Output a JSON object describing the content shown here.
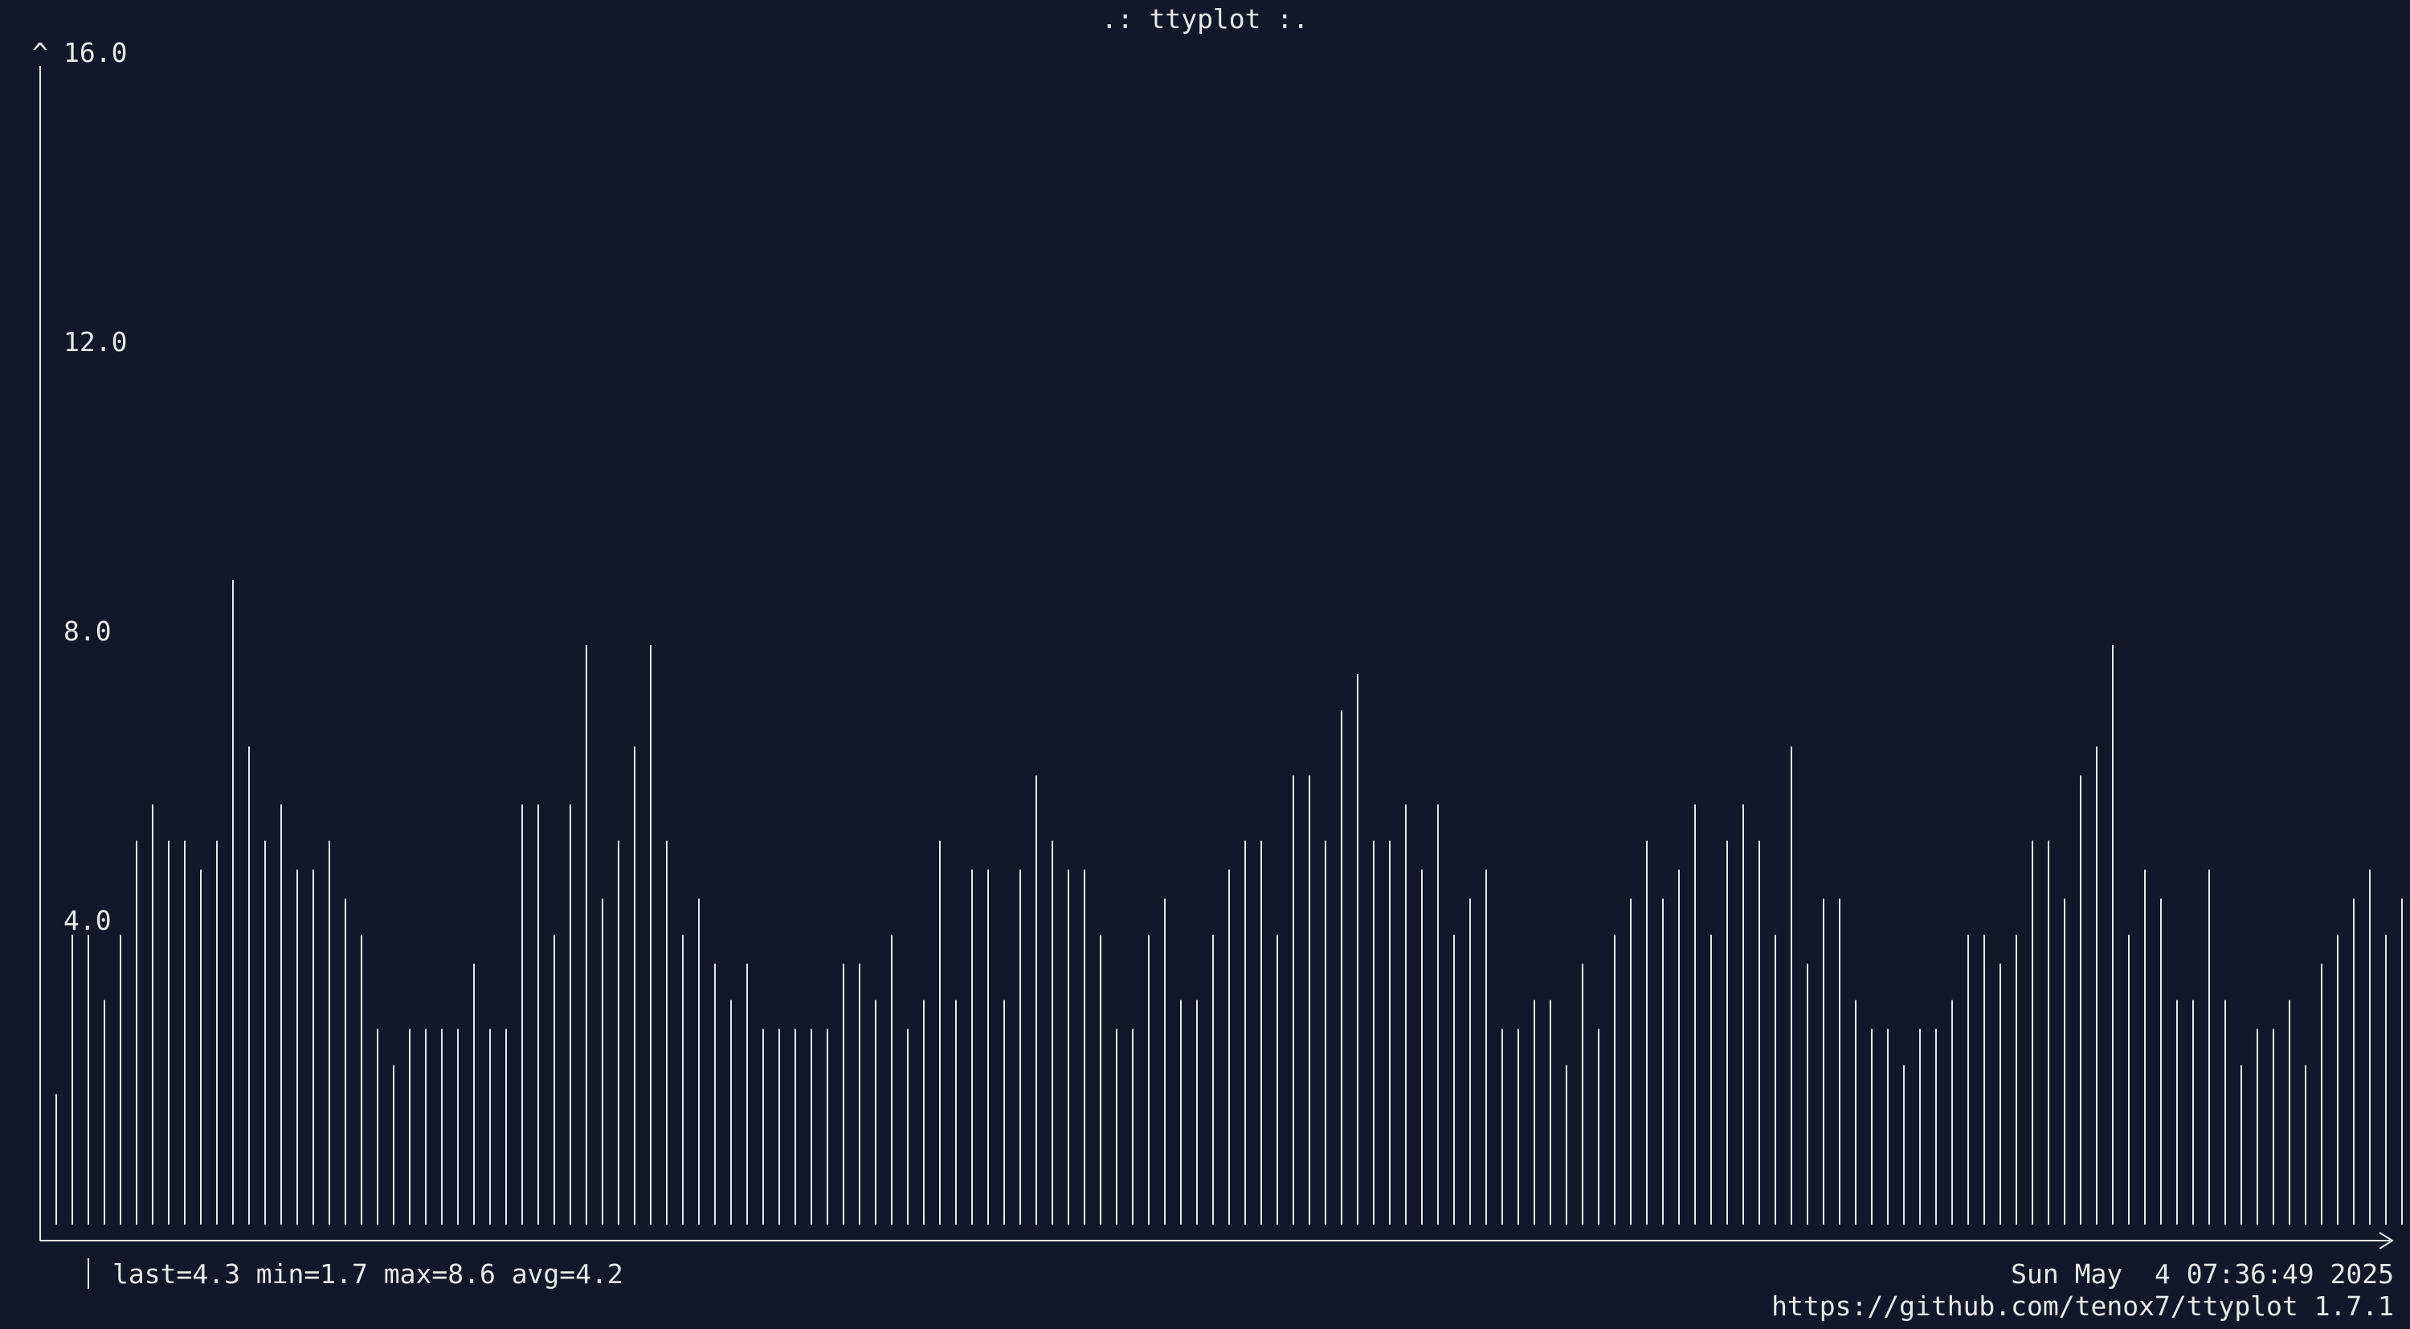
{
  "header": {
    "title": ".: ttyplot :."
  },
  "axis": {
    "y_caret": "^"
  },
  "footer": {
    "stats": "last=4.3 min=1.7 max=8.6 avg=4.2",
    "timestamp": "Sun May  4 07:36:49 2025",
    "url": "https://github.com/tenox7/ttyplot 1.7.1"
  },
  "colors": {
    "background": "#12172a",
    "foreground": "#e8e8e8"
  },
  "chart_data": {
    "type": "bar",
    "ylim": [
      0,
      16
    ],
    "yticks": [
      "16.0",
      "12.0",
      "8.0",
      "4.0"
    ],
    "ytick_values": [
      16,
      12,
      8,
      4
    ],
    "grid": false,
    "values": [
      1.8,
      4.0,
      4.0,
      3.1,
      4.0,
      5.3,
      5.8,
      5.3,
      5.3,
      4.9,
      5.3,
      8.9,
      6.6,
      5.3,
      5.8,
      4.9,
      4.9,
      5.3,
      4.5,
      4.0,
      2.7,
      2.2,
      2.7,
      2.7,
      2.7,
      2.7,
      3.6,
      2.7,
      2.7,
      5.8,
      5.8,
      4.0,
      5.8,
      8.0,
      4.5,
      5.3,
      6.6,
      8.0,
      5.3,
      4.0,
      4.5,
      3.6,
      3.1,
      3.6,
      2.7,
      2.7,
      2.7,
      2.7,
      2.7,
      3.6,
      3.6,
      3.1,
      4.0,
      2.7,
      3.1,
      5.3,
      3.1,
      4.9,
      4.9,
      3.1,
      4.9,
      6.2,
      5.3,
      4.9,
      4.9,
      4.0,
      2.7,
      2.7,
      4.0,
      4.5,
      3.1,
      3.1,
      4.0,
      4.9,
      5.3,
      5.3,
      4.0,
      6.2,
      6.2,
      5.3,
      7.1,
      7.6,
      5.3,
      5.3,
      5.8,
      4.9,
      5.8,
      4.0,
      4.5,
      4.9,
      2.7,
      2.7,
      3.1,
      3.1,
      2.2,
      3.6,
      2.7,
      4.0,
      4.5,
      5.3,
      4.5,
      4.9,
      5.8,
      4.0,
      5.3,
      5.8,
      5.3,
      4.0,
      6.6,
      3.6,
      4.5,
      4.5,
      3.1,
      2.7,
      2.7,
      2.2,
      2.7,
      2.7,
      3.1,
      4.0,
      4.0,
      3.6,
      4.0,
      5.3,
      5.3,
      4.5,
      6.2,
      6.6,
      8.0,
      4.0,
      4.9,
      4.5,
      3.1,
      3.1,
      4.9,
      3.1,
      2.2,
      2.7,
      2.7,
      3.1,
      2.2,
      3.6,
      4.0,
      4.5,
      4.9,
      4.0,
      4.5
    ]
  }
}
